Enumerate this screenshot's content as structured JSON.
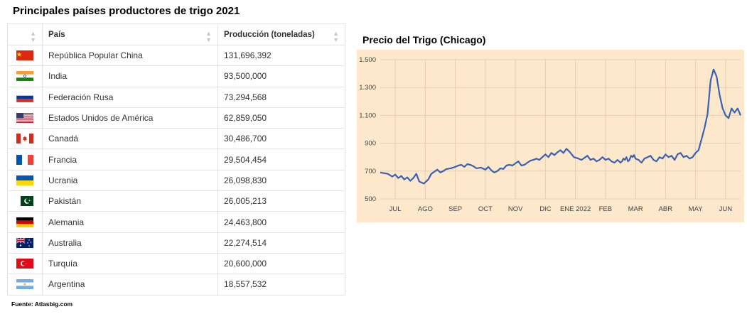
{
  "title": "Principales países productores de trigo 2021",
  "source": "Fuente: Atlasbig.com",
  "table": {
    "headers": [
      "País",
      "Producción (toneladas)"
    ],
    "rows": [
      {
        "flag": "china-flag-icon",
        "country": "República Popular China",
        "production": "131,696,392"
      },
      {
        "flag": "india-flag-icon",
        "country": "India",
        "production": "93,500,000"
      },
      {
        "flag": "russia-flag-icon",
        "country": "Federación Rusa",
        "production": "73,294,568"
      },
      {
        "flag": "usa-flag-icon",
        "country": "Estados Unidos de América",
        "production": "62,859,050"
      },
      {
        "flag": "canada-flag-icon",
        "country": "Canadá",
        "production": "30,486,700"
      },
      {
        "flag": "france-flag-icon",
        "country": "Francia",
        "production": "29,504,454"
      },
      {
        "flag": "ukraine-flag-icon",
        "country": "Ucrania",
        "production": "26,098,830"
      },
      {
        "flag": "pakistan-flag-icon",
        "country": "Pakistán",
        "production": "26,005,213"
      },
      {
        "flag": "germany-flag-icon",
        "country": "Alemania",
        "production": "24,463,800"
      },
      {
        "flag": "australia-flag-icon",
        "country": "Australia",
        "production": "22,274,514"
      },
      {
        "flag": "turkey-flag-icon",
        "country": "Turquía",
        "production": "20,600,000"
      },
      {
        "flag": "argentina-flag-icon",
        "country": "Argentina",
        "production": "18,557,532"
      }
    ]
  },
  "chart_data": {
    "type": "line",
    "title": "Precio del Trigo (Chicago)",
    "xlabel": "",
    "ylabel": "",
    "categories": [
      "JUL",
      "AGO",
      "SEP",
      "OCT",
      "NOV",
      "DIC",
      "ENE 2022",
      "FEB",
      "MAR",
      "ABR",
      "MAY",
      "JUN"
    ],
    "yticks": [
      "1.500",
      "1.300",
      "1.100",
      "900",
      "700",
      "500"
    ],
    "ylim": [
      500,
      1500
    ],
    "xlim": [
      0,
      12
    ],
    "grid": true,
    "series": [
      {
        "name": "Precio del Trigo",
        "color": "#3a62b0",
        "x": [
          0,
          0.12,
          0.25,
          0.4,
          0.5,
          0.6,
          0.7,
          0.8,
          0.9,
          1.0,
          1.1,
          1.2,
          1.3,
          1.45,
          1.6,
          1.7,
          1.8,
          1.9,
          2.0,
          2.1,
          2.2,
          2.35,
          2.5,
          2.6,
          2.7,
          2.8,
          2.9,
          3.0,
          3.1,
          3.2,
          3.35,
          3.5,
          3.6,
          3.7,
          3.8,
          3.9,
          4.0,
          4.1,
          4.2,
          4.3,
          4.4,
          4.5,
          4.6,
          4.7,
          4.8,
          4.9,
          5.0,
          5.1,
          5.2,
          5.3,
          5.4,
          5.5,
          5.6,
          5.7,
          5.8,
          5.9,
          6.0,
          6.1,
          6.2,
          6.3,
          6.45,
          6.6,
          6.7,
          6.8,
          6.9,
          7.0,
          7.1,
          7.2,
          7.3,
          7.4,
          7.5,
          7.6,
          7.7,
          7.8,
          7.9,
          8.0,
          8.05,
          8.1,
          8.15,
          8.2,
          8.25,
          8.3,
          8.35,
          8.4,
          8.45,
          8.5,
          8.6,
          8.7,
          8.8,
          8.9,
          9.0,
          9.1,
          9.2,
          9.3,
          9.4,
          9.5,
          9.6,
          9.7,
          9.8,
          9.9,
          10.0,
          10.1,
          10.2,
          10.3,
          10.4,
          10.5,
          10.6,
          10.7,
          10.8,
          10.9,
          11.0,
          11.1,
          11.2,
          11.3,
          11.4,
          11.5,
          11.6,
          11.7,
          11.8,
          11.9,
          12.0
        ],
        "values": [
          690,
          685,
          680,
          660,
          675,
          650,
          665,
          640,
          655,
          630,
          650,
          680,
          625,
          610,
          640,
          680,
          695,
          710,
          690,
          700,
          715,
          720,
          730,
          740,
          745,
          730,
          750,
          745,
          735,
          720,
          725,
          710,
          730,
          705,
          690,
          700,
          720,
          715,
          740,
          745,
          740,
          755,
          770,
          740,
          745,
          760,
          775,
          780,
          790,
          780,
          800,
          820,
          800,
          830,
          815,
          835,
          850,
          830,
          860,
          840,
          800,
          790,
          780,
          795,
          810,
          780,
          790,
          770,
          780,
          800,
          780,
          790,
          770,
          760,
          780,
          760,
          770,
          790,
          780,
          800,
          770,
          780,
          810,
          800,
          815,
          790,
          780,
          760,
          790,
          800,
          810,
          780,
          770,
          800,
          790,
          820,
          800,
          810,
          780,
          820,
          830,
          800,
          810,
          790,
          800,
          830,
          850,
          930,
          1010,
          1110,
          1350,
          1430,
          1380,
          1250,
          1150,
          1100,
          1080,
          1150,
          1120,
          1150,
          1100
        ]
      }
    ]
  }
}
